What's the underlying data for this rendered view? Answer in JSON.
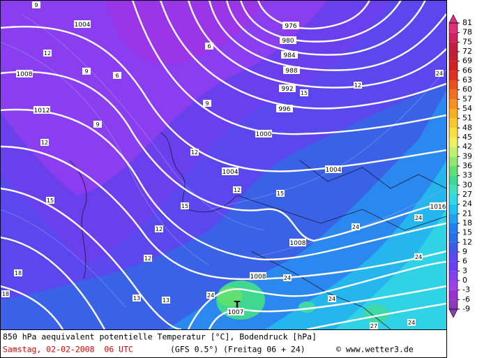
{
  "map": {
    "isobar_labels": [
      "1004",
      "976",
      "980",
      "984",
      "988",
      "992",
      "996",
      "1008",
      "1012",
      "1000",
      "1004",
      "1004",
      "1008",
      "1008",
      "1007",
      "T",
      "1016"
    ],
    "contour_labels": [
      "9",
      "12",
      "9",
      "6",
      "6",
      "9",
      "9",
      "12",
      "12",
      "15",
      "12",
      "12",
      "15",
      "15",
      "15",
      "12",
      "12",
      "18",
      "18",
      "13",
      "13",
      "24",
      "24",
      "24",
      "24",
      "24",
      "24",
      "24",
      "27",
      "24"
    ]
  },
  "colorbar": {
    "ticks": [
      -9,
      -6,
      -3,
      0,
      3,
      6,
      9,
      12,
      15,
      18,
      21,
      24,
      27,
      30,
      33,
      36,
      39,
      42,
      45,
      48,
      51,
      54,
      57,
      60,
      63,
      66,
      69,
      72,
      75,
      78,
      81
    ],
    "colors": [
      "#8c3ab8",
      "#9b30d0",
      "#a040e8",
      "#8040f0",
      "#6a40f0",
      "#5a48f0",
      "#3c5ae8",
      "#2870e8",
      "#2080f0",
      "#20a0f0",
      "#20c0f0",
      "#30d8e8",
      "#40e0c0",
      "#40d890",
      "#60e070",
      "#90e870",
      "#c0f070",
      "#f0f060",
      "#f8e040",
      "#f8c830",
      "#f8b020",
      "#f89020",
      "#f07020",
      "#e85020",
      "#e03020",
      "#d02020",
      "#c02030",
      "#c02040",
      "#d02060",
      "#e0307a"
    ]
  },
  "footer": {
    "title": "850 hPa aequivalent potentielle Temperatur [°C], Bodendruck [hPa]",
    "date": "Samstag, 02-02-2008  06 UTC",
    "model": "(GFS 0.5°)",
    "run": "(Freitag 06 + 24)",
    "credit": "© www.wetter3.de"
  }
}
